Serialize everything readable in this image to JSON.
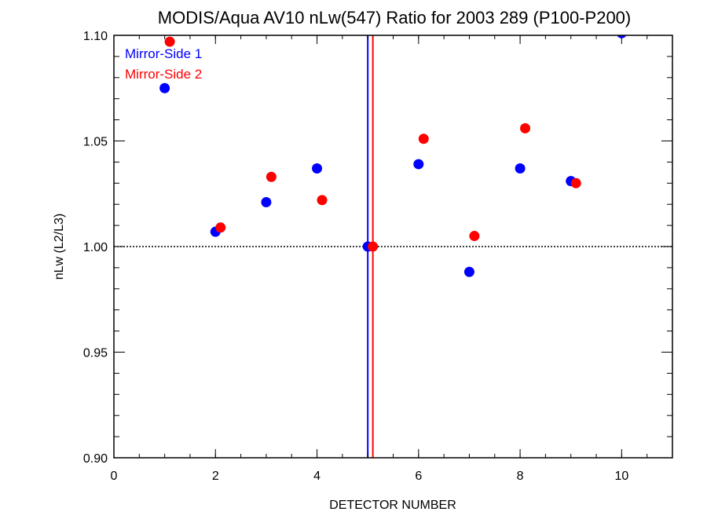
{
  "chart_data": {
    "type": "scatter",
    "title": "MODIS/Aqua AV10 nLw(547) Ratio for 2003 289 (P100-P200)",
    "xlabel": "DETECTOR NUMBER",
    "ylabel": "nLw (L2/L3)",
    "xlim": [
      0,
      11
    ],
    "ylim": [
      0.9,
      1.1
    ],
    "x_ticks": [
      0,
      2,
      4,
      6,
      8,
      10
    ],
    "x_tick_labels": [
      "0",
      "2",
      "4",
      "6",
      "8",
      "10"
    ],
    "y_ticks": [
      0.9,
      0.95,
      1.0,
      1.05,
      1.1
    ],
    "y_tick_labels": [
      "0.90",
      "0.95",
      "1.00",
      "1.05",
      "1.10"
    ],
    "grid": false,
    "legend_position": "top-left",
    "reference_line": {
      "y": 1.0,
      "style": "dotted"
    },
    "vertical_lines": [
      {
        "x": 5.0,
        "color": "#0000ff"
      },
      {
        "x": 5.1,
        "color": "#ff0000"
      }
    ],
    "series": [
      {
        "name": "Mirror-Side 1",
        "color": "#0000ff",
        "x": [
          1,
          2,
          3,
          4,
          5,
          6,
          7,
          8,
          9,
          10
        ],
        "y": [
          1.075,
          1.007,
          1.021,
          1.037,
          1.0,
          1.039,
          0.988,
          1.037,
          1.031,
          1.101
        ]
      },
      {
        "name": "Mirror-Side 2",
        "color": "#ff0000",
        "x": [
          1.1,
          2.1,
          3.1,
          4.1,
          5.1,
          6.1,
          7.1,
          8.1,
          9.1
        ],
        "y": [
          1.097,
          1.009,
          1.033,
          1.022,
          1.0,
          1.051,
          1.005,
          1.056,
          1.03
        ]
      }
    ]
  }
}
